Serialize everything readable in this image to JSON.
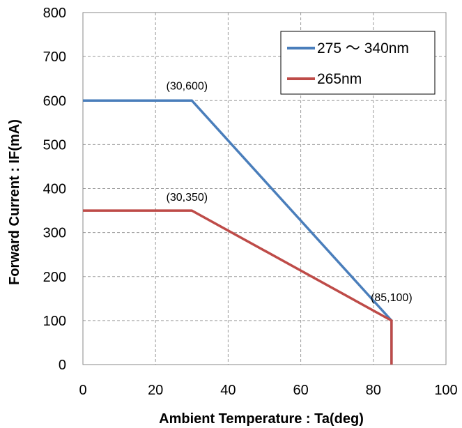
{
  "chart_data": {
    "type": "line",
    "title": "",
    "xlabel": "Ambient Temperature  : Ta(deg)",
    "ylabel": "Forward Current : IF(mA)",
    "xlim": [
      0,
      100
    ],
    "ylim": [
      0,
      800
    ],
    "x_ticks": [
      0,
      20,
      40,
      60,
      80,
      100
    ],
    "y_ticks": [
      0,
      100,
      200,
      300,
      400,
      500,
      600,
      700,
      800
    ],
    "grid": true,
    "legend_position": "top-right",
    "series": [
      {
        "name": "275 ～ 340nm",
        "color": "#4a7ebb",
        "x": [
          0,
          30,
          85,
          85
        ],
        "y": [
          600,
          600,
          100,
          0
        ]
      },
      {
        "name": "265nm",
        "color": "#be4b48",
        "x": [
          0,
          30,
          85,
          85
        ],
        "y": [
          350,
          350,
          100,
          0
        ]
      }
    ],
    "annotations": [
      {
        "text": "(30,600)",
        "x": 30,
        "y": 600
      },
      {
        "text": "(30,350)",
        "x": 30,
        "y": 350
      },
      {
        "text": "(85,100)",
        "x": 85,
        "y": 100
      }
    ]
  }
}
